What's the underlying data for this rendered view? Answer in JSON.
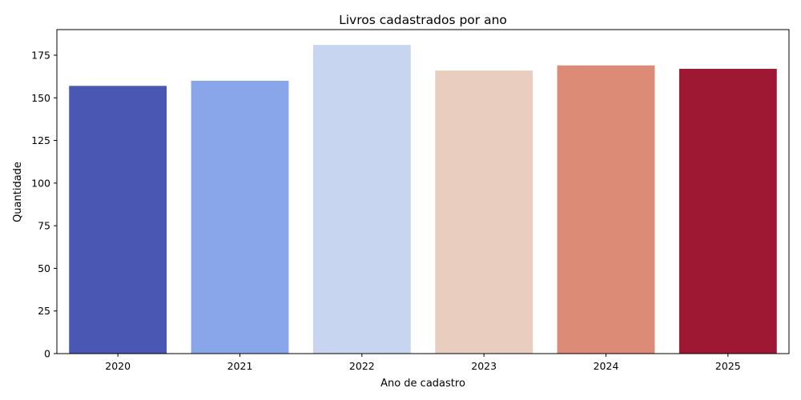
{
  "chart_data": {
    "type": "bar",
    "title": "Livros cadastrados por ano",
    "xlabel": "Ano de cadastro",
    "ylabel": "Quantidade",
    "categories": [
      "2020",
      "2021",
      "2022",
      "2023",
      "2024",
      "2025"
    ],
    "values": [
      157,
      160,
      181,
      166,
      169,
      167
    ],
    "colors": [
      "#4b58b3",
      "#8aa6ea",
      "#c7d5f0",
      "#e9cebf",
      "#dc8b76",
      "#9e1834"
    ],
    "ylim": [
      0,
      190
    ],
    "yticks": [
      0,
      25,
      50,
      75,
      100,
      125,
      150,
      175
    ],
    "grid": false,
    "legend": false
  }
}
